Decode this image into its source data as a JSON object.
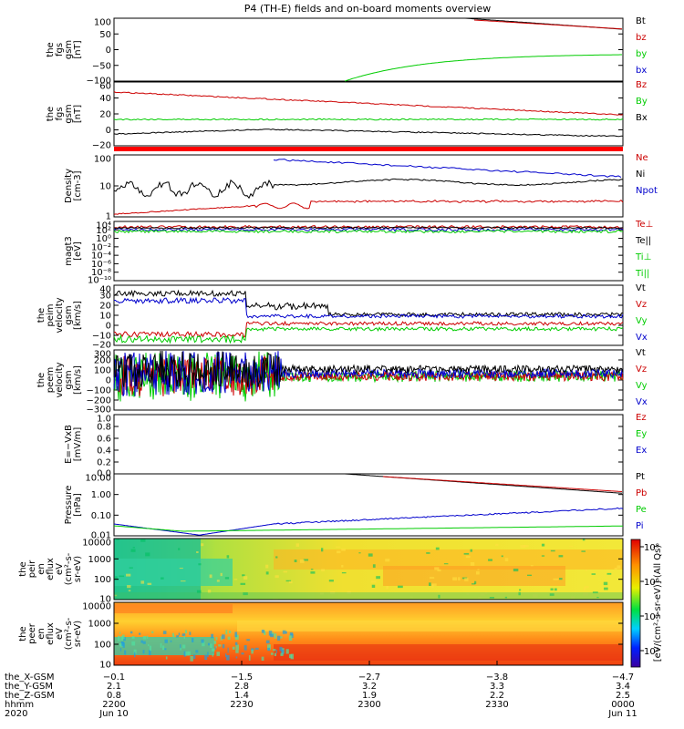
{
  "title": "P4 (TH-E) fields and on-board moments overview",
  "colors": {
    "black": "#000000",
    "red": "#cc0000",
    "green": "#00cc00",
    "blue": "#0000cc"
  },
  "chart_data": [
    {
      "type": "line",
      "ylabel": [
        "the",
        "fgs",
        "gsm",
        "[nT]"
      ],
      "yticks": [
        "100",
        "50",
        "0",
        "−50",
        "−100"
      ],
      "ylim": [
        -100,
        100
      ],
      "legend": [
        {
          "name": "Bt",
          "color": "black"
        },
        {
          "name": "bz",
          "color": "red"
        },
        {
          "name": "by",
          "color": "green"
        },
        {
          "name": "bx",
          "color": "blue"
        }
      ]
    },
    {
      "type": "line",
      "ylabel": [
        "the",
        "fgs",
        "gsm",
        "[nT]"
      ],
      "yticks": [
        "60",
        "40",
        "20",
        "0",
        "−20"
      ],
      "ylim": [
        -20,
        60
      ],
      "legend": [
        {
          "name": "Bz",
          "color": "red"
        },
        {
          "name": "By",
          "color": "green"
        },
        {
          "name": "Bx",
          "color": "black"
        }
      ]
    },
    {
      "type": "line",
      "ylabel": [
        "Density",
        "[cm-3]"
      ],
      "yticks": [
        "100",
        "10",
        "1"
      ],
      "log": true,
      "legend": [
        {
          "name": "Ne",
          "color": "red"
        },
        {
          "name": "Ni",
          "color": "black"
        },
        {
          "name": "Npot",
          "color": "blue"
        }
      ]
    },
    {
      "type": "line",
      "ylabel": [
        "magt3",
        "[eV]"
      ],
      "yticks": [
        "10⁴",
        "10²",
        "10⁰",
        "10⁻²",
        "10⁻⁴",
        "10⁻⁶",
        "10⁻⁸",
        "10⁻¹⁰"
      ],
      "log": true,
      "legend": [
        {
          "name": "Te⊥",
          "color": "red"
        },
        {
          "name": "Te||",
          "color": "black"
        },
        {
          "name": "Ti⊥",
          "color": "green"
        },
        {
          "name": "Ti||",
          "color": "green"
        }
      ]
    },
    {
      "type": "line",
      "ylabel": [
        "the",
        "peim",
        "velocity",
        "gsm",
        "[km/s]"
      ],
      "yticks": [
        "40",
        "30",
        "20",
        "10",
        "0",
        "−10",
        "−20"
      ],
      "ylim": [
        -20,
        40
      ],
      "legend": [
        {
          "name": "Vt",
          "color": "black"
        },
        {
          "name": "Vz",
          "color": "red"
        },
        {
          "name": "Vy",
          "color": "green"
        },
        {
          "name": "Vx",
          "color": "blue"
        }
      ]
    },
    {
      "type": "line",
      "ylabel": [
        "the",
        "peem",
        "velocity",
        "gsm",
        "[km/s]"
      ],
      "yticks": [
        "300",
        "200",
        "100",
        "0",
        "−100",
        "−200",
        "−300"
      ],
      "ylim": [
        -300,
        300
      ],
      "legend": [
        {
          "name": "Vt",
          "color": "black"
        },
        {
          "name": "Vz",
          "color": "red"
        },
        {
          "name": "Vy",
          "color": "green"
        },
        {
          "name": "Vx",
          "color": "blue"
        }
      ]
    },
    {
      "type": "line",
      "ylabel": [
        "E=−VxB",
        "[mV/m]"
      ],
      "yticks": [
        "1.0",
        "0.8",
        "0.6",
        "0.4",
        "0.2",
        "0.0"
      ],
      "ylim": [
        0,
        1
      ],
      "legend": [
        {
          "name": "Ez",
          "color": "red"
        },
        {
          "name": "Ey",
          "color": "green"
        },
        {
          "name": "Ex",
          "color": "blue"
        }
      ]
    },
    {
      "type": "line",
      "ylabel": [
        "Pressure",
        "[nPa]"
      ],
      "yticks": [
        "10.00",
        "1.00",
        "0.10",
        "0.01"
      ],
      "log": true,
      "legend": [
        {
          "name": "Pt",
          "color": "black"
        },
        {
          "name": "Pb",
          "color": "red"
        },
        {
          "name": "Pe",
          "color": "green"
        },
        {
          "name": "Pi",
          "color": "blue"
        }
      ]
    },
    {
      "type": "heatmap",
      "ylabel": [
        "the",
        "peir",
        "en",
        "eflux",
        "eV",
        "(cm²-s-",
        "sr-eV)"
      ],
      "yticks": [
        "10000",
        "1000",
        "100",
        "10"
      ],
      "log": true
    },
    {
      "type": "heatmap",
      "ylabel": [
        "the",
        "peer",
        "en",
        "eflux",
        "eV",
        "(cm²-s-",
        "sr-eV)"
      ],
      "yticks": [
        "10000",
        "1000",
        "100",
        "10"
      ],
      "log": true
    }
  ],
  "colorbar": {
    "label": "[eV/(cm²-s-sr-eV)] (All Qs)",
    "ticks": [
      "10⁸",
      "10⁶",
      "10⁴",
      "10²"
    ]
  },
  "xaxis": {
    "rows": [
      {
        "name": "the_X-GSM",
        "values": [
          "−0.1",
          "−1.5",
          "−2.7",
          "−3.8",
          "−4.7"
        ]
      },
      {
        "name": "the_Y-GSM",
        "values": [
          "2.1",
          "2.8",
          "3.2",
          "3.3",
          "3.4"
        ]
      },
      {
        "name": "the_Z-GSM",
        "values": [
          "0.8",
          "1.4",
          "1.9",
          "2.2",
          "2.5"
        ]
      },
      {
        "name": "hhmm",
        "values": [
          "2200",
          "2230",
          "2300",
          "2330",
          "0000"
        ]
      },
      {
        "name": "2020",
        "values": [
          "Jun 10",
          "",
          "",
          "",
          "Jun 11"
        ]
      }
    ]
  }
}
